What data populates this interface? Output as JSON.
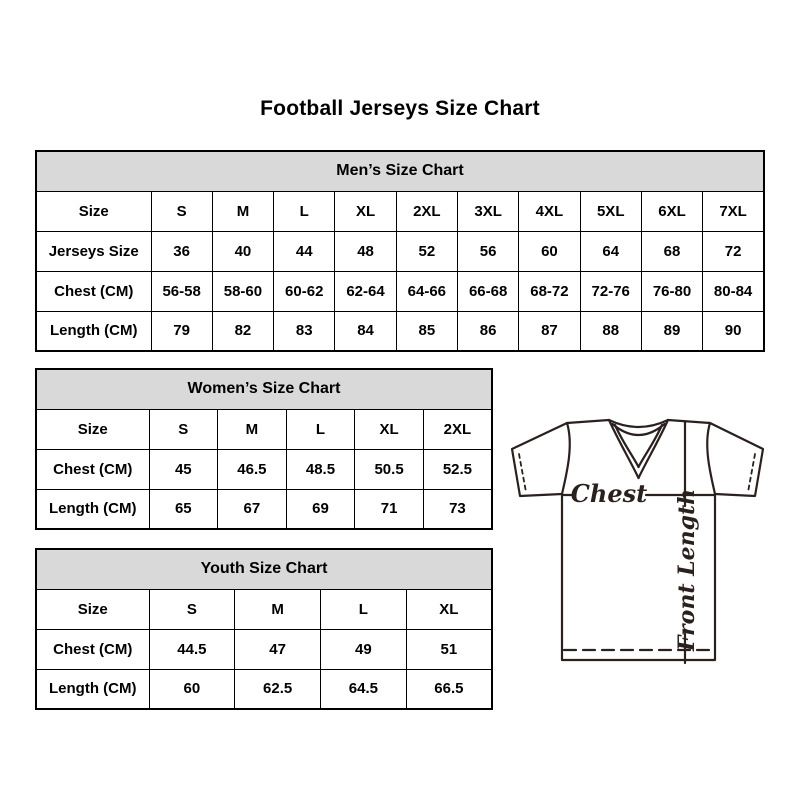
{
  "header": {
    "title": "Football Jerseys Size Chart"
  },
  "colors": {
    "background": "#ffffff",
    "table_header_bg": "#d9d9d9",
    "table_border": "#000000",
    "text": "#000000",
    "diagram_stroke": "#2a211f"
  },
  "chart_data": [
    {
      "type": "table",
      "title": "Men’s Size Chart",
      "columns": [
        "Size",
        "S",
        "M",
        "L",
        "XL",
        "2XL",
        "3XL",
        "4XL",
        "5XL",
        "6XL",
        "7XL"
      ],
      "rows": [
        [
          "Jerseys Size",
          "36",
          "40",
          "44",
          "48",
          "52",
          "56",
          "60",
          "64",
          "68",
          "72"
        ],
        [
          "Chest (CM)",
          "56-58",
          "58-60",
          "60-62",
          "62-64",
          "64-66",
          "66-68",
          "68-72",
          "72-76",
          "76-80",
          "80-84"
        ],
        [
          "Length (CM)",
          "79",
          "82",
          "83",
          "84",
          "85",
          "86",
          "87",
          "88",
          "89",
          "90"
        ]
      ]
    },
    {
      "type": "table",
      "title": "Women’s Size Chart",
      "columns": [
        "Size",
        "S",
        "M",
        "L",
        "XL",
        "2XL"
      ],
      "rows": [
        [
          "Chest (CM)",
          "45",
          "46.5",
          "48.5",
          "50.5",
          "52.5"
        ],
        [
          "Length (CM)",
          "65",
          "67",
          "69",
          "71",
          "73"
        ]
      ]
    },
    {
      "type": "table",
      "title": "Youth Size Chart",
      "columns": [
        "Size",
        "S",
        "M",
        "L",
        "XL"
      ],
      "rows": [
        [
          "Chest (CM)",
          "44.5",
          "47",
          "49",
          "51"
        ],
        [
          "Length (CM)",
          "60",
          "62.5",
          "64.5",
          "66.5"
        ]
      ]
    }
  ],
  "diagram": {
    "chest_label": "Chest",
    "front_length_label": "Front Length"
  }
}
